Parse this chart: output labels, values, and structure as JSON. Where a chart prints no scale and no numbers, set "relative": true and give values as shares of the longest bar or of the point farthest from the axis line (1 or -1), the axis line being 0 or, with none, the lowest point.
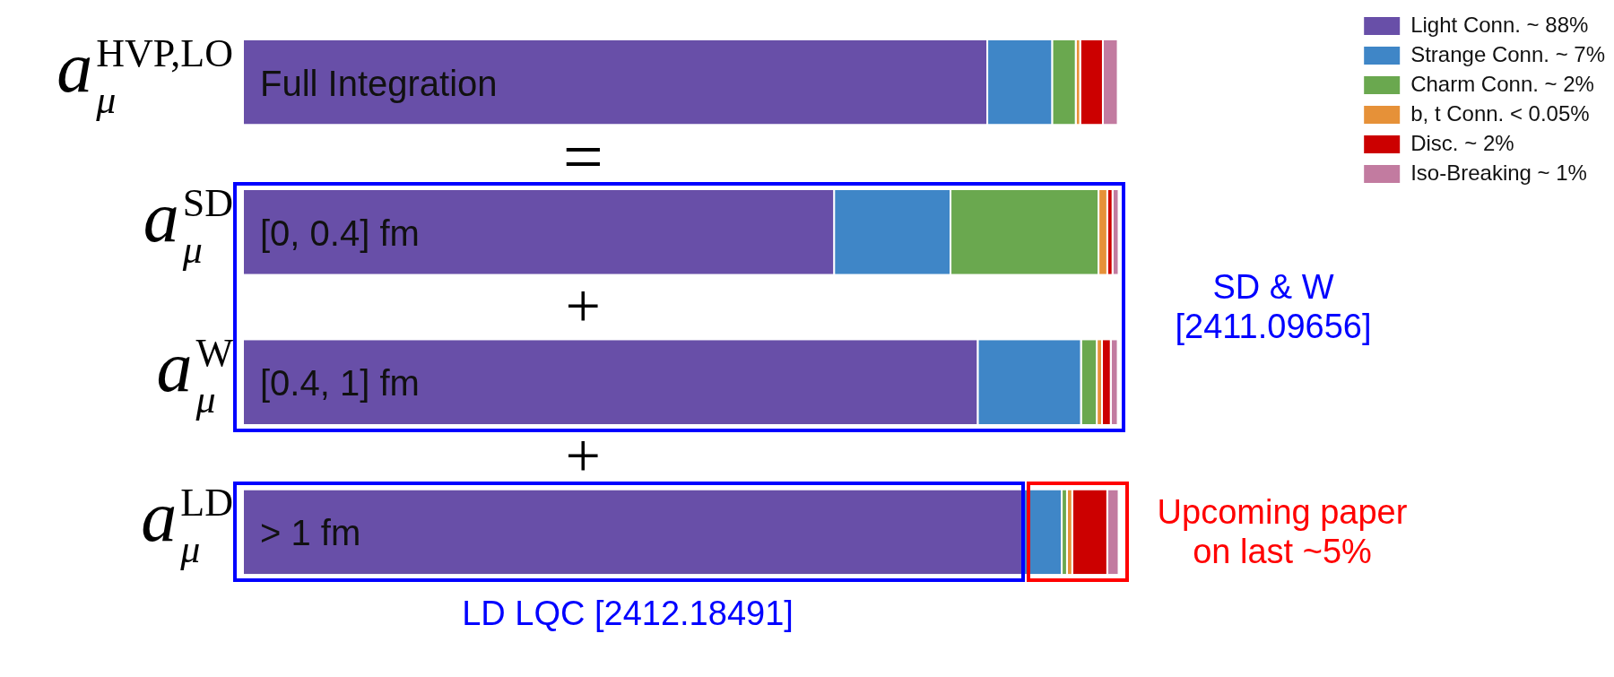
{
  "chart_data": {
    "type": "bar",
    "orientation": "horizontal",
    "stacked": true,
    "relative": true,
    "legend": "top right",
    "categories": [
      "a$_{μ}$$^{HVP,LO}$",
      "a$_{μ}$$^{SD}$",
      "a$_{μ}$$^{W}$",
      "a$_{μ}$$^{LD}$"
    ],
    "series": [
      {
        "name": "Light Conn. ~ 88%",
        "color": "#684fa8",
        "values": [
          0.85,
          0.675,
          0.839,
          0.89
        ]
      },
      {
        "name": "Strange Conn. ~ 7%",
        "color": "#3f86c7",
        "values": [
          0.074,
          0.133,
          0.118,
          0.045
        ]
      },
      {
        "name": "Charm Conn. ~ 2%",
        "color": "#6aa84f",
        "values": [
          0.027,
          0.169,
          0.018,
          0.006
        ]
      },
      {
        "name": "b, t Conn. < 0.05%",
        "color": "#e69138",
        "values": [
          0.005,
          0.01,
          0.006,
          0.006
        ]
      },
      {
        "name": "Disc. ~ 2%",
        "color": "#cc0000",
        "values": [
          0.026,
          0.006,
          0.01,
          0.04
        ]
      },
      {
        "name": "Iso-Breaking ~ 1%",
        "color": "#c27ba0",
        "values": [
          0.017,
          0.007,
          0.008,
          0.013
        ]
      }
    ],
    "annotations": [
      "Full Integration",
      "[0, 0.4] fm",
      "[0.4, 1] fm",
      "> 1 fm",
      "=",
      "+",
      "+",
      "SD & W [2411.09656]",
      "LD LQC [2412.18491]",
      "Upcoming paper on last ~5%"
    ]
  }
}
